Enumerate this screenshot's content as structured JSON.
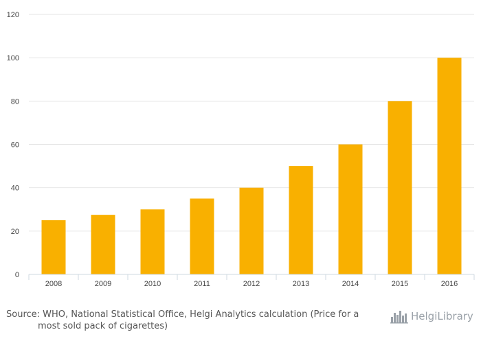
{
  "chart_data": {
    "type": "bar",
    "title": "",
    "xlabel": "",
    "ylabel": "",
    "categories": [
      "2008",
      "2009",
      "2010",
      "2011",
      "2012",
      "2013",
      "2014",
      "2015",
      "2016"
    ],
    "values": [
      25,
      27.5,
      30,
      35,
      40,
      50,
      60,
      80,
      100
    ],
    "ylim": [
      0,
      120
    ],
    "yticks": [
      "0",
      "20",
      "40",
      "60",
      "80",
      "100",
      "120"
    ],
    "grid": true,
    "legend": "none",
    "bar_color": "#f9b000"
  },
  "footer": {
    "source_line1": "Source: WHO, National Statistical Office, Helgi Analytics calculation (Price for a",
    "source_line2": "most sold pack of cigarettes)",
    "brand_name": "HelgiLibrary",
    "brand_icon": "skyline-icon"
  },
  "colors": {
    "bar": "#f9b000",
    "brand": "#9aa1a8"
  }
}
